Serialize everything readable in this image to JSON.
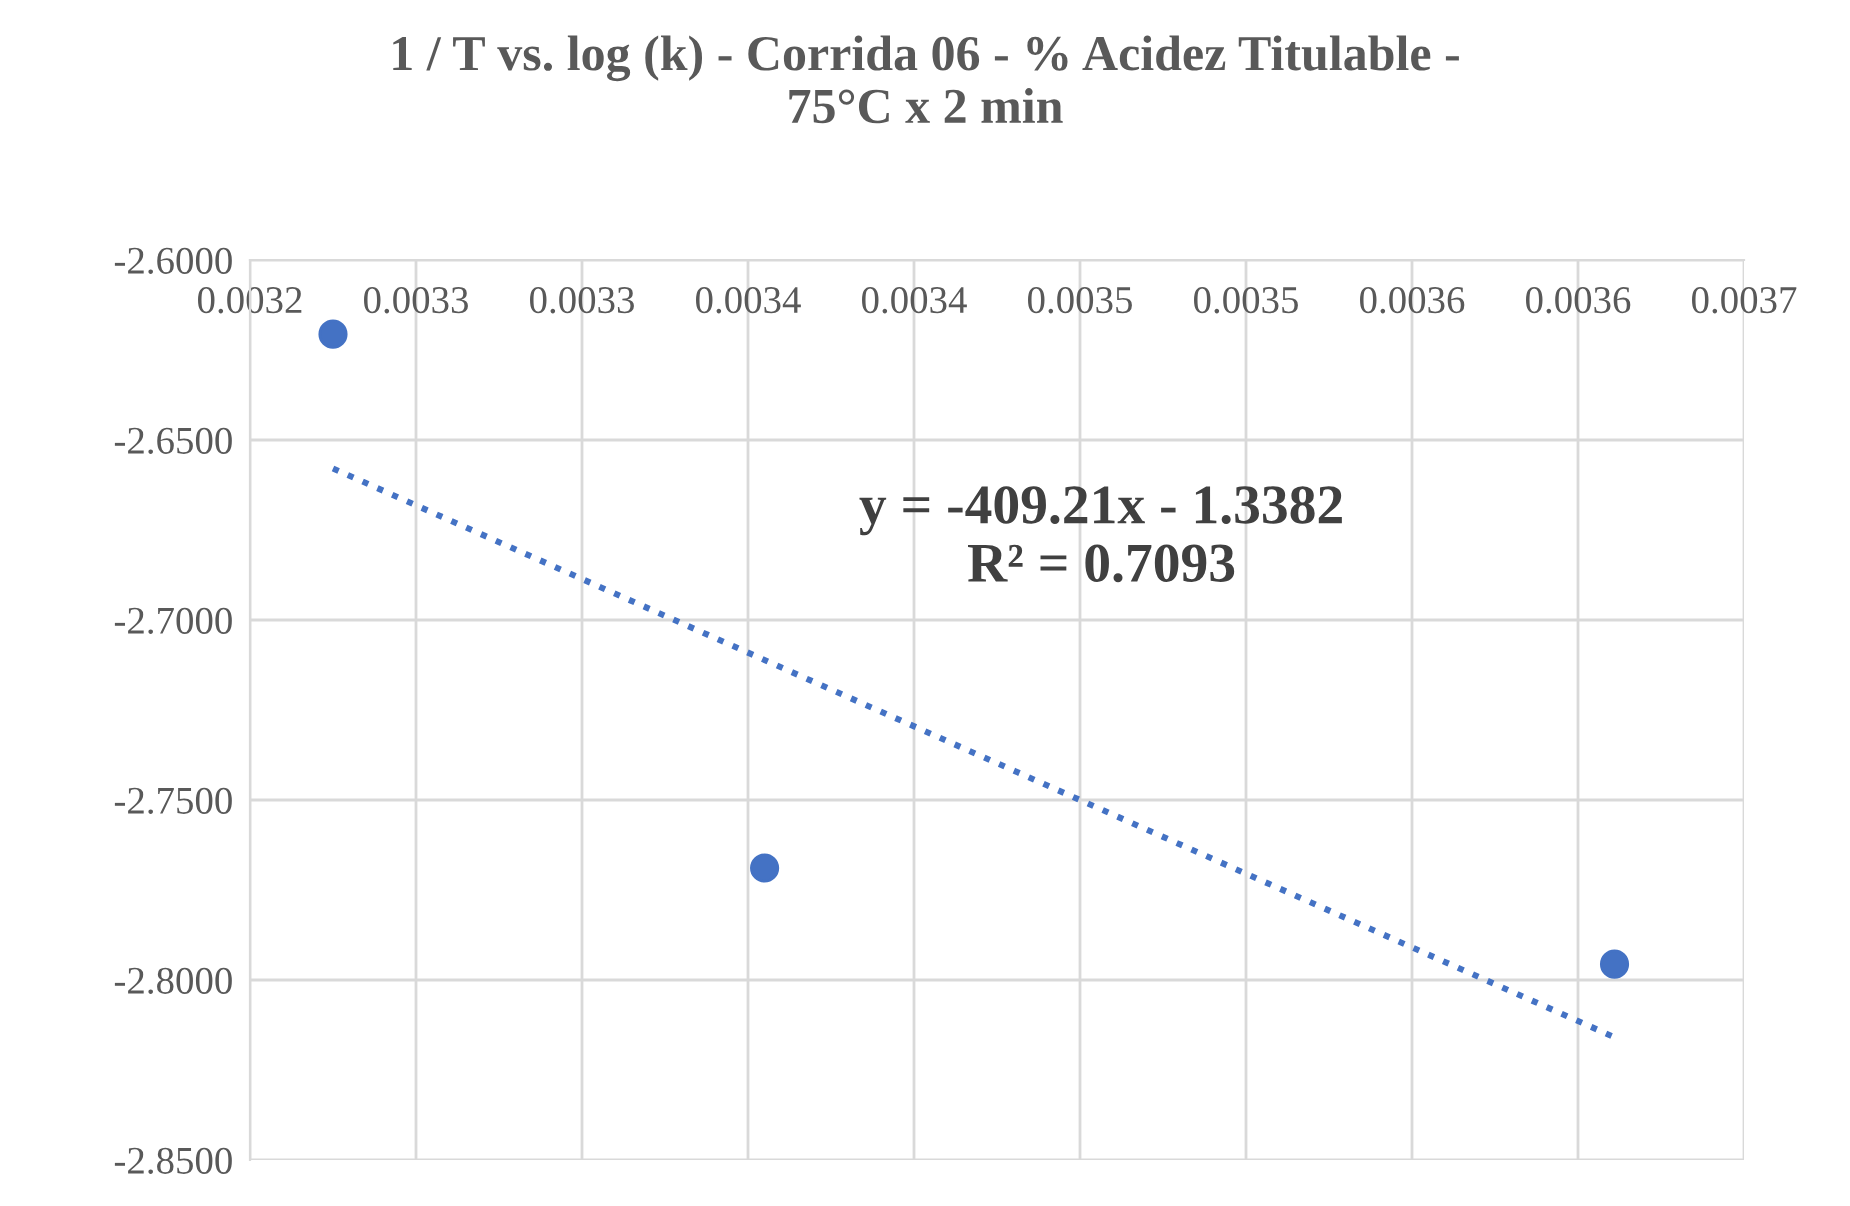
{
  "chart_data": {
    "type": "scatter",
    "title": "1 / T vs. log (k) - Corrida 06 - % Acidez Titulable -\n75°C x 2 min",
    "series": [
      {
        "color": "#4472c4",
        "x": [
          0.003225,
          0.003355,
          0.003611
        ],
        "values": [
          -2.6206,
          -2.7689,
          -2.7956
        ],
        "marker": "circle"
      },
      {
        "type": "line",
        "color": "#4472c4",
        "x": [
          0.003225,
          0.003611
        ],
        "values": [
          -2.6579,
          -2.8159
        ],
        "line_style": "dotted",
        "marker": "none"
      }
    ],
    "annotations": [
      "y = -409.21x - 1.3382\nR² = 0.7093"
    ],
    "xlim": [
      0.0032,
      0.00365
    ],
    "xticks": [
      0.0032,
      {
        "value": 0.00325,
        "label": "0.0033"
      },
      0.0033,
      {
        "value": 0.00335,
        "label": "0.0034"
      },
      0.0034,
      {
        "value": 0.00345,
        "label": "0.0035"
      },
      0.0035,
      {
        "value": 0.00355,
        "label": "0.0036"
      },
      0.0036,
      {
        "value": 0.00365,
        "label": "0.0037"
      }
    ],
    "ylim": [
      -2.85,
      -2.6
    ],
    "yticks": [
      {
        "value": -2.85,
        "label": "-2.8500"
      },
      {
        "value": -2.8,
        "label": "-2.8000"
      },
      {
        "value": -2.75,
        "label": "-2.7500"
      },
      {
        "value": -2.7,
        "label": "-2.7000"
      },
      {
        "value": -2.65,
        "label": "-2.6500"
      },
      {
        "value": -2.6,
        "label": "-2.6000"
      }
    ],
    "grid": true,
    "legend": false
  }
}
